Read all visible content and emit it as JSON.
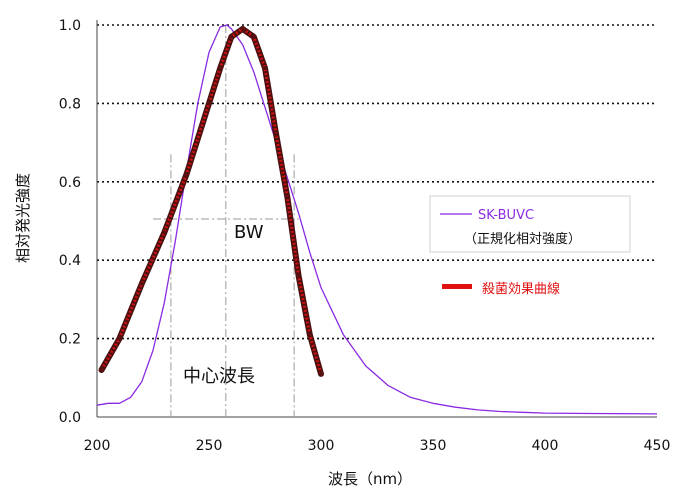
{
  "chart_data": {
    "type": "line",
    "xlabel": "波長（nm）",
    "ylabel": "相対発光強度",
    "xlim": [
      200,
      450
    ],
    "ylim": [
      0,
      1.0
    ],
    "x_ticks": [
      "200",
      "250",
      "300",
      "350",
      "400",
      "450"
    ],
    "y_ticks": [
      "0.0",
      "0.2",
      "0.4",
      "0.6",
      "0.8",
      "1.0"
    ],
    "grid": "horizontal dotted",
    "legend_position": "right",
    "annotations": {
      "bandwidth": "BW",
      "center": "中心波長"
    },
    "series": [
      {
        "name": "SK-BUVC",
        "name_line2": "（正規化相対強度）",
        "color": "#8a2be2",
        "x": [
          200,
          205,
          210,
          215,
          220,
          225,
          230,
          235,
          240,
          245,
          250,
          255,
          258,
          260,
          265,
          270,
          275,
          280,
          285,
          290,
          295,
          300,
          310,
          320,
          330,
          340,
          350,
          360,
          370,
          380,
          390,
          400,
          420,
          450
        ],
        "y": [
          0.03,
          0.035,
          0.035,
          0.05,
          0.09,
          0.17,
          0.29,
          0.45,
          0.63,
          0.8,
          0.93,
          0.995,
          1.0,
          0.99,
          0.95,
          0.88,
          0.79,
          0.7,
          0.61,
          0.52,
          0.42,
          0.33,
          0.21,
          0.13,
          0.08,
          0.05,
          0.035,
          0.025,
          0.018,
          0.014,
          0.012,
          0.01,
          0.009,
          0.008
        ]
      },
      {
        "name": "殺菌効果曲線",
        "color": "#cc1111",
        "x": [
          202,
          210,
          220,
          230,
          240,
          250,
          255,
          260,
          265,
          270,
          275,
          280,
          285,
          290,
          295,
          300
        ],
        "y": [
          0.12,
          0.2,
          0.34,
          0.47,
          0.62,
          0.8,
          0.89,
          0.97,
          0.99,
          0.97,
          0.89,
          0.72,
          0.56,
          0.36,
          0.21,
          0.11
        ]
      }
    ]
  }
}
